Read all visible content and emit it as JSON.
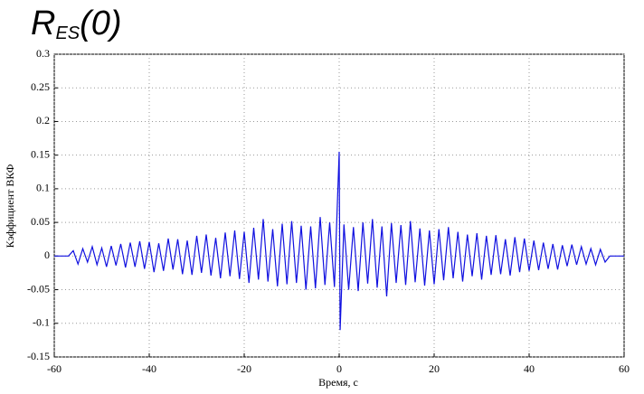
{
  "chart_data": {
    "type": "line",
    "title": "R",
    "title_subscript": "ES",
    "title_suffix": "(0)",
    "xlabel": "Время, с",
    "ylabel": "Кэффициент ВКФ",
    "x": [
      -60,
      -57,
      -56,
      -55,
      -54,
      -53,
      -52,
      -51,
      -50,
      -49,
      -48,
      -47,
      -46,
      -45,
      -44,
      -43,
      -42,
      -41,
      -40,
      -39,
      -38,
      -37,
      -36,
      -35,
      -34,
      -33,
      -32,
      -31,
      -30,
      -29,
      -28,
      -27,
      -26,
      -25,
      -24,
      -23,
      -22,
      -21,
      -20,
      -19,
      -18,
      -17,
      -16,
      -15,
      -14,
      -13,
      -12,
      -11,
      -10,
      -9,
      -8,
      -7,
      -6,
      -5,
      -4,
      -3,
      -2,
      -1,
      0,
      0.2,
      1,
      2,
      3,
      4,
      5,
      6,
      7,
      8,
      9,
      10,
      11,
      12,
      13,
      14,
      15,
      16,
      17,
      18,
      19,
      20,
      21,
      22,
      23,
      24,
      25,
      26,
      27,
      28,
      29,
      30,
      31,
      32,
      33,
      34,
      35,
      36,
      37,
      38,
      39,
      40,
      41,
      42,
      43,
      44,
      45,
      46,
      47,
      48,
      49,
      50,
      51,
      52,
      53,
      54,
      55,
      56,
      57,
      60
    ],
    "series": [
      {
        "color": "#1010e0",
        "values": [
          0,
          0,
          0.008,
          -0.012,
          0.011,
          -0.009,
          0.014,
          -0.013,
          0.012,
          -0.016,
          0.015,
          -0.014,
          0.018,
          -0.017,
          0.02,
          -0.016,
          0.022,
          -0.019,
          0.021,
          -0.024,
          0.019,
          -0.022,
          0.026,
          -0.02,
          0.025,
          -0.027,
          0.023,
          -0.028,
          0.03,
          -0.025,
          0.032,
          -0.029,
          0.027,
          -0.033,
          0.035,
          -0.03,
          0.038,
          -0.034,
          0.036,
          -0.04,
          0.042,
          -0.035,
          0.055,
          -0.038,
          0.04,
          -0.045,
          0.048,
          -0.042,
          0.052,
          -0.04,
          0.045,
          -0.05,
          0.044,
          -0.048,
          0.058,
          -0.043,
          0.05,
          -0.046,
          0.155,
          -0.11,
          0.047,
          -0.05,
          0.043,
          -0.052,
          0.05,
          -0.041,
          0.055,
          -0.047,
          0.044,
          -0.06,
          0.049,
          -0.04,
          0.046,
          -0.043,
          0.052,
          -0.039,
          0.041,
          -0.044,
          0.038,
          -0.042,
          0.04,
          -0.036,
          0.043,
          -0.033,
          0.036,
          -0.038,
          0.032,
          -0.03,
          0.034,
          -0.035,
          0.03,
          -0.028,
          0.031,
          -0.027,
          0.025,
          -0.029,
          0.028,
          -0.024,
          0.026,
          -0.022,
          0.023,
          -0.021,
          0.02,
          -0.019,
          0.018,
          -0.02,
          0.016,
          -0.015,
          0.017,
          -0.013,
          0.014,
          -0.012,
          0.011,
          -0.013,
          0.01,
          -0.009,
          0,
          0
        ]
      }
    ],
    "xlim": [
      -60,
      60
    ],
    "xticks": [
      -60,
      -40,
      -20,
      0,
      20,
      40,
      60
    ],
    "ylim": [
      -0.15,
      0.3
    ],
    "yticks": [
      -0.15,
      -0.1,
      -0.05,
      0,
      0.05,
      0.1,
      0.15,
      0.2,
      0.25,
      0.3
    ],
    "grid": true
  }
}
